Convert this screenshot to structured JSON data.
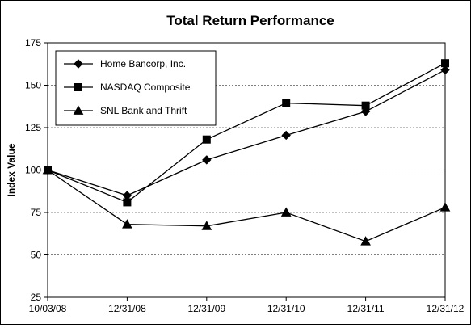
{
  "chart_data": {
    "type": "line",
    "title": "Total Return Performance",
    "xlabel": "",
    "ylabel": "Index Value",
    "categories": [
      "10/03/08",
      "12/31/08",
      "12/31/09",
      "12/31/10",
      "12/31/11",
      "12/31/12"
    ],
    "ylim": [
      25,
      175
    ],
    "yticks": [
      25,
      50,
      75,
      100,
      125,
      150,
      175
    ],
    "grid": "horizontal dashed",
    "legend_position": "top-left",
    "series": [
      {
        "name": "Home Bancorp, Inc.",
        "marker": "diamond",
        "values": [
          100,
          85,
          106,
          120.5,
          134.5,
          159
        ]
      },
      {
        "name": "NASDAQ Composite",
        "marker": "square",
        "values": [
          100,
          81,
          118,
          139.5,
          138,
          163
        ]
      },
      {
        "name": "SNL Bank and Thrift",
        "marker": "triangle",
        "values": [
          100,
          68,
          67,
          75,
          58,
          78
        ]
      }
    ],
    "colors": {
      "line": "#000000",
      "grid": "#808080",
      "background": "#ffffff"
    }
  }
}
